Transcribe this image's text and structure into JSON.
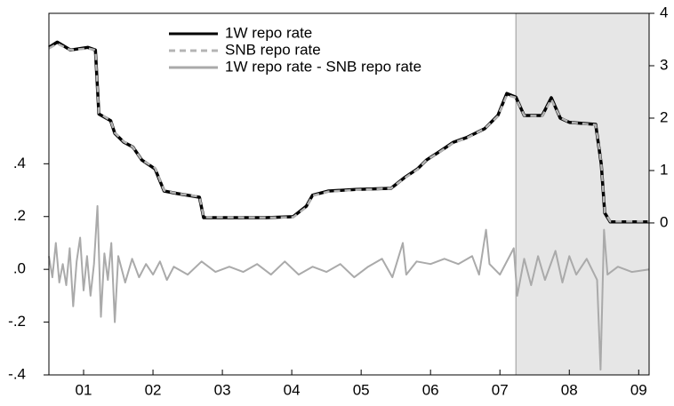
{
  "chart_data": {
    "type": "line",
    "xlim": [
      2001,
      2009.65
    ],
    "xticks": [
      {
        "value": 2001.5,
        "label": "01"
      },
      {
        "value": 2002.5,
        "label": "02"
      },
      {
        "value": 2003.5,
        "label": "03"
      },
      {
        "value": 2004.5,
        "label": "04"
      },
      {
        "value": 2005.5,
        "label": "05"
      },
      {
        "value": 2006.5,
        "label": "06"
      },
      {
        "value": 2007.5,
        "label": "07"
      },
      {
        "value": 2008.5,
        "label": "08"
      },
      {
        "value": 2009.5,
        "label": "09"
      }
    ],
    "ylim": [
      -0.4,
      0.97
    ],
    "yticks": [
      {
        "value": -0.4,
        "label": "-.4"
      },
      {
        "value": -0.2,
        "label": "-.2"
      },
      {
        "value": 0,
        "label": ".0"
      },
      {
        "value": 0.2,
        "label": ".2"
      },
      {
        "value": 0.4,
        "label": ".4"
      }
    ],
    "y2lim": [
      -2.9,
      4
    ],
    "y2ticks": [
      0,
      1,
      2,
      3,
      4
    ],
    "shade": [
      2007.73,
      2009.65
    ],
    "legend": "top-left",
    "series": [
      {
        "name": "1W repo rate",
        "color": "#000000",
        "axis": "y2",
        "dash": false,
        "x": [
          2001.0,
          2001.12,
          2001.31,
          2001.56,
          2001.67,
          2001.72,
          2001.89,
          2001.95,
          2002.08,
          2002.21,
          2002.34,
          2002.53,
          2002.66,
          2002.85,
          2003.17,
          2003.23,
          2004.13,
          2004.52,
          2004.71,
          2004.8,
          2005.03,
          2005.42,
          2005.93,
          2006.12,
          2006.31,
          2006.44,
          2006.64,
          2006.83,
          2007.02,
          2007.28,
          2007.47,
          2007.6,
          2007.73,
          2007.85,
          2008.11,
          2008.24,
          2008.37,
          2008.5,
          2008.88,
          2008.96,
          2009.01,
          2009.09,
          2009.65
        ],
        "values": [
          3.35,
          3.45,
          3.3,
          3.35,
          3.3,
          2.08,
          1.95,
          1.71,
          1.54,
          1.45,
          1.2,
          1.03,
          0.61,
          0.56,
          0.49,
          0.1,
          0.1,
          0.12,
          0.32,
          0.53,
          0.61,
          0.64,
          0.66,
          0.86,
          1.03,
          1.2,
          1.37,
          1.54,
          1.63,
          1.8,
          2.05,
          2.47,
          2.4,
          2.05,
          2.05,
          2.39,
          2.0,
          1.92,
          1.88,
          1.12,
          0.19,
          0.02,
          0.02
        ]
      },
      {
        "name": "SNB repo rate",
        "color": "#b4b4b4",
        "axis": "y2",
        "dash": true,
        "x": [
          2001.0,
          2001.12,
          2001.31,
          2001.56,
          2001.67,
          2001.72,
          2001.89,
          2001.95,
          2002.08,
          2002.21,
          2002.34,
          2002.53,
          2002.66,
          2002.85,
          2003.17,
          2003.23,
          2004.13,
          2004.52,
          2004.71,
          2004.8,
          2005.03,
          2005.42,
          2005.93,
          2006.12,
          2006.31,
          2006.44,
          2006.64,
          2006.83,
          2007.02,
          2007.28,
          2007.47,
          2007.6,
          2007.73,
          2007.85,
          2008.11,
          2008.24,
          2008.37,
          2008.5,
          2008.88,
          2008.96,
          2009.01,
          2009.09,
          2009.65
        ],
        "values": [
          3.33,
          3.42,
          3.3,
          3.33,
          3.3,
          2.1,
          1.95,
          1.72,
          1.55,
          1.45,
          1.2,
          1.05,
          0.62,
          0.56,
          0.5,
          0.11,
          0.1,
          0.11,
          0.3,
          0.52,
          0.6,
          0.63,
          0.66,
          0.85,
          1.02,
          1.2,
          1.36,
          1.53,
          1.62,
          1.8,
          2.04,
          2.44,
          2.39,
          2.05,
          2.04,
          2.36,
          2.01,
          1.92,
          1.87,
          1.14,
          0.2,
          0.03,
          0.03
        ]
      },
      {
        "name": "1W repo rate - SNB repo rate",
        "color": "#aaaaaa",
        "axis": "y",
        "dash": false,
        "x": [
          2001.0,
          2001.05,
          2001.1,
          2001.15,
          2001.2,
          2001.25,
          2001.3,
          2001.35,
          2001.4,
          2001.45,
          2001.5,
          2001.55,
          2001.6,
          2001.65,
          2001.7,
          2001.75,
          2001.8,
          2001.85,
          2001.9,
          2001.95,
          2002.0,
          2002.1,
          2002.2,
          2002.3,
          2002.4,
          2002.5,
          2002.6,
          2002.7,
          2002.8,
          2003.0,
          2003.2,
          2003.4,
          2003.6,
          2003.8,
          2004.0,
          2004.2,
          2004.4,
          2004.6,
          2004.8,
          2005.0,
          2005.2,
          2005.4,
          2005.6,
          2005.8,
          2005.95,
          2006.1,
          2006.15,
          2006.3,
          2006.5,
          2006.7,
          2006.9,
          2007.1,
          2007.2,
          2007.3,
          2007.35,
          2007.5,
          2007.7,
          2007.75,
          2007.85,
          2007.95,
          2008.05,
          2008.15,
          2008.3,
          2008.4,
          2008.5,
          2008.6,
          2008.75,
          2008.9,
          2008.95,
          2009.0,
          2009.05,
          2009.2,
          2009.4,
          2009.65
        ],
        "values": [
          0.05,
          -0.03,
          0.1,
          -0.05,
          0.02,
          -0.06,
          0.08,
          -0.14,
          0.03,
          0.12,
          -0.08,
          0.05,
          -0.1,
          0.02,
          0.24,
          -0.18,
          0.06,
          -0.04,
          0.1,
          -0.2,
          0.05,
          -0.05,
          0.04,
          -0.03,
          0.02,
          -0.02,
          0.03,
          -0.04,
          0.01,
          -0.02,
          0.03,
          -0.01,
          0.01,
          -0.01,
          0.02,
          -0.02,
          0.03,
          -0.02,
          0.01,
          -0.01,
          0.02,
          -0.03,
          0.01,
          0.04,
          -0.03,
          0.1,
          -0.02,
          0.03,
          0.02,
          0.04,
          0.02,
          0.05,
          -0.02,
          0.15,
          0.02,
          -0.02,
          0.08,
          -0.1,
          0.04,
          -0.06,
          0.05,
          -0.04,
          0.07,
          -0.05,
          0.05,
          -0.02,
          0.04,
          -0.04,
          -0.38,
          0.15,
          -0.02,
          0.01,
          -0.01,
          0.0
        ]
      }
    ]
  }
}
